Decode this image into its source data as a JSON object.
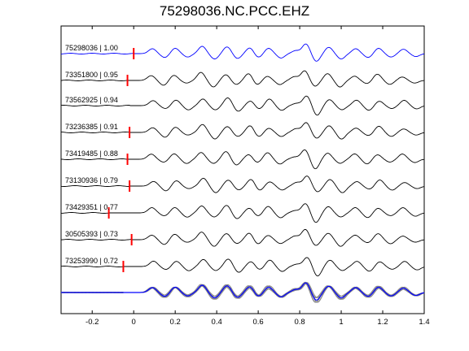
{
  "title": "75298036.NC.PCC.EHZ",
  "chart_data": {
    "type": "line",
    "title": "75298036.NC.PCC.EHZ",
    "xlabel": "",
    "ylabel": "",
    "xlim": [
      -0.35,
      1.4
    ],
    "xticks": [
      -0.2,
      0,
      0.2,
      0.4,
      0.6,
      0.8,
      1,
      1.2,
      1.4
    ],
    "xtick_labels": [
      "-0.2",
      "0",
      "0.2",
      "0.4",
      "0.6",
      "0.8",
      "1",
      "1.2",
      "1.4"
    ],
    "colors": {
      "master": "#0000ff",
      "trace": "#000000",
      "pick": "#ff0000",
      "overlay": "#888888"
    },
    "traces": [
      {
        "label": "75298036 | 1.00",
        "id": "75298036",
        "cc": 1.0,
        "pick_time": 0.0,
        "master": true
      },
      {
        "label": "73351800 | 0.95",
        "id": "73351800",
        "cc": 0.95,
        "pick_time": -0.03
      },
      {
        "label": "73562925 | 0.94",
        "id": "73562925",
        "cc": 0.94,
        "pick_time": null
      },
      {
        "label": "73236385 | 0.91",
        "id": "73236385",
        "cc": 0.91,
        "pick_time": -0.02
      },
      {
        "label": "73419485 | 0.88",
        "id": "73419485",
        "cc": 0.88,
        "pick_time": -0.03
      },
      {
        "label": "73130936 | 0.79",
        "id": "73130936",
        "cc": 0.79,
        "pick_time": -0.02
      },
      {
        "label": "73429351 | 0.77",
        "id": "73429351",
        "cc": 0.77,
        "pick_time": -0.12
      },
      {
        "label": "30505393 | 0.73",
        "id": "30505393",
        "cc": 0.73,
        "pick_time": -0.01
      },
      {
        "label": "73253990 | 0.72",
        "id": "73253990",
        "cc": 0.72,
        "pick_time": -0.05
      }
    ],
    "waveform_peaks": [
      {
        "t": 0.09,
        "a": 0.5
      },
      {
        "t": 0.15,
        "a": -0.4
      },
      {
        "t": 0.2,
        "a": 0.55
      },
      {
        "t": 0.26,
        "a": -0.35
      },
      {
        "t": 0.33,
        "a": 0.75
      },
      {
        "t": 0.39,
        "a": -0.55
      },
      {
        "t": 0.45,
        "a": 0.7
      },
      {
        "t": 0.5,
        "a": -0.5
      },
      {
        "t": 0.56,
        "a": 0.6
      },
      {
        "t": 0.6,
        "a": -0.4
      },
      {
        "t": 0.65,
        "a": 0.55
      },
      {
        "t": 0.71,
        "a": -0.45
      },
      {
        "t": 0.78,
        "a": 0.3
      },
      {
        "t": 0.83,
        "a": 1.0
      },
      {
        "t": 0.88,
        "a": -0.8
      },
      {
        "t": 0.94,
        "a": 0.65
      },
      {
        "t": 1.0,
        "a": -0.55
      },
      {
        "t": 1.07,
        "a": 0.5
      },
      {
        "t": 1.13,
        "a": -0.4
      },
      {
        "t": 1.18,
        "a": 0.55
      },
      {
        "t": 1.24,
        "a": -0.35
      },
      {
        "t": 1.3,
        "a": 0.45
      },
      {
        "t": 1.36,
        "a": -0.3
      }
    ],
    "grid": false,
    "legend": "none"
  }
}
